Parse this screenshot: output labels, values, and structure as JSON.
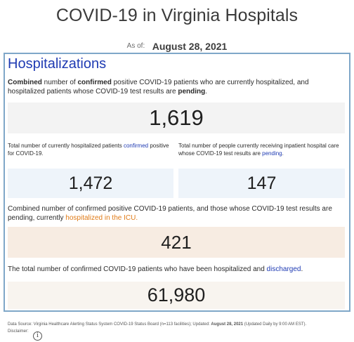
{
  "header": {
    "title": "COVID-19 in Virginia Hospitals",
    "as_of_label": "As of:",
    "as_of_date": "August 28, 2021"
  },
  "hospitalizations": {
    "title": "Hospitalizations",
    "combined": {
      "desc_a": "Combined",
      "desc_b": " number of ",
      "desc_c": "confirmed",
      "desc_d": " positive COVID-19 patients who are currently hospitalized, and hospitalized patients whose COVID-19 test results are ",
      "desc_e": "pending",
      "desc_f": ".",
      "value": "1,619"
    },
    "confirmed": {
      "desc_a": "Total number of currently hospitalized patients ",
      "desc_link": "confirmed",
      "desc_b": " positive for COVID-19.",
      "value": "1,472"
    },
    "pending": {
      "desc_a": "Total number of people currently receiving inpatient hospital care whose COVID-19 test results are ",
      "desc_link": "pending",
      "desc_b": ".",
      "value": "147"
    },
    "icu": {
      "desc_a": "Combined number of confirmed positive COVID-19 patients, and those whose COVID-19 test results are pending, currently ",
      "desc_link": "hospitalized in the ICU.",
      "value": "421"
    },
    "discharged": {
      "desc_a": "The total number of confirmed COVID-19 patients who have been hospitalized and ",
      "desc_link": "discharged",
      "desc_b": ".",
      "value": "61,980"
    }
  },
  "footer": {
    "source_a": "Data Source: Virginia Healthcare Alerting Status System COVID-19 Status Board (n=113 facilities); Updated: ",
    "source_date": "August 28, 2021",
    "source_b": " (Updated Daily by 9:00 AM EST).",
    "disclaimer_label": "Disclaimer:",
    "info_icon_glyph": "i"
  },
  "colors": {
    "title_blue": "#1f3bb3",
    "link_orange": "#e07b17",
    "panel_border": "#7fa7c8"
  }
}
